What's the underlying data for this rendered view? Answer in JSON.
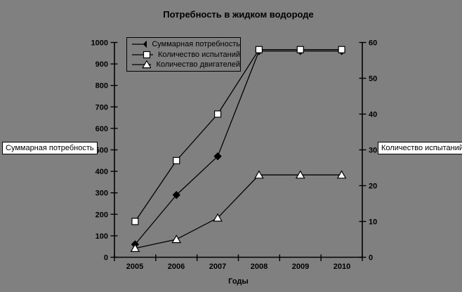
{
  "title": "Потребность в жидком водороде",
  "x_axis_title": "Годы",
  "axis_boxes": {
    "left": "Суммарная потребность",
    "right": "Количество испытаний"
  },
  "colors": {
    "background": "#808080",
    "foreground": "#000000",
    "marker_light_fill": "#ffffff"
  },
  "chart_data": {
    "type": "line",
    "title": "Потребность в жидком водороде",
    "xlabel": "Годы",
    "grid": false,
    "legend_position": "top-left-inside",
    "categories": [
      "2005",
      "2006",
      "2007",
      "2008",
      "2009",
      "2010"
    ],
    "left_axis": {
      "title": "Суммарная потребность",
      "min": 0,
      "max": 1000,
      "step": 100,
      "ticks": [
        "0",
        "100",
        "200",
        "300",
        "400",
        "500",
        "600",
        "700",
        "800",
        "900",
        "1000"
      ]
    },
    "right_axis": {
      "title": "Количество испытаний",
      "min": 0,
      "max": 60,
      "step": 10,
      "ticks": [
        "0",
        "10",
        "20",
        "30",
        "40",
        "50",
        "60"
      ]
    },
    "series": [
      {
        "name": "Суммарная потребность",
        "axis": "left",
        "marker": "diamond",
        "fill": "#000000",
        "values": [
          60,
          290,
          470,
          960,
          960,
          960
        ]
      },
      {
        "name": "Количество испытаний",
        "axis": "right",
        "marker": "square",
        "fill": "#ffffff",
        "values": [
          10,
          27,
          40,
          58,
          58,
          58
        ]
      },
      {
        "name": "Количество двигателей",
        "axis": "right",
        "marker": "triangle",
        "fill": "#ffffff",
        "values": [
          2.5,
          5,
          11,
          23,
          23,
          23
        ]
      }
    ]
  }
}
